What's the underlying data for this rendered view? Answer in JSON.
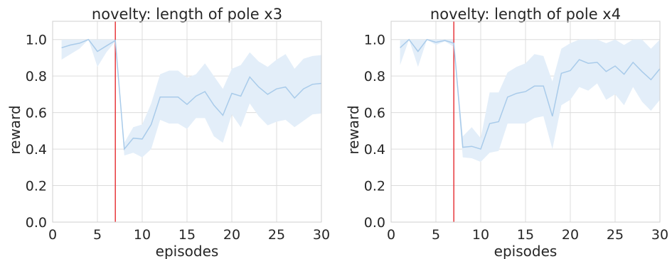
{
  "chart_data": [
    {
      "type": "line",
      "title": "novelty: length of pole x3",
      "xlabel": "episodes",
      "ylabel": "reward",
      "xlim": [
        0,
        30
      ],
      "ylim": [
        0,
        1.1
      ],
      "xticks": [
        "0",
        "5",
        "10",
        "15",
        "20",
        "25",
        "30"
      ],
      "yticks": [
        "0.0",
        "0.2",
        "0.4",
        "0.6",
        "0.8",
        "1.0"
      ],
      "grid": true,
      "legend": "none",
      "novelty_episode": 7,
      "series": [
        {
          "x": [
            1,
            2,
            3,
            4,
            5,
            6,
            7,
            8,
            9,
            10,
            11,
            12,
            13,
            14,
            15,
            16,
            17,
            18,
            19,
            20,
            21,
            22,
            23,
            24,
            25,
            26,
            27,
            28,
            29,
            30
          ],
          "mean": [
            0.955,
            0.97,
            0.98,
            1.0,
            0.935,
            0.965,
            0.995,
            0.4,
            0.46,
            0.455,
            0.535,
            0.685,
            0.685,
            0.685,
            0.645,
            0.69,
            0.715,
            0.64,
            0.585,
            0.705,
            0.69,
            0.795,
            0.74,
            0.7,
            0.73,
            0.74,
            0.68,
            0.73,
            0.755,
            0.76
          ],
          "lower": [
            0.89,
            0.92,
            0.95,
            1.0,
            0.85,
            0.93,
            0.99,
            0.365,
            0.38,
            0.355,
            0.4,
            0.56,
            0.54,
            0.54,
            0.51,
            0.57,
            0.57,
            0.47,
            0.435,
            0.59,
            0.52,
            0.65,
            0.58,
            0.53,
            0.55,
            0.56,
            0.52,
            0.555,
            0.59,
            0.595
          ],
          "upper": [
            1.0,
            1.0,
            1.0,
            1.0,
            1.0,
            1.0,
            1.0,
            0.435,
            0.52,
            0.535,
            0.65,
            0.81,
            0.83,
            0.83,
            0.79,
            0.81,
            0.87,
            0.8,
            0.73,
            0.84,
            0.86,
            0.93,
            0.88,
            0.85,
            0.89,
            0.92,
            0.84,
            0.895,
            0.91,
            0.915
          ]
        }
      ]
    },
    {
      "type": "line",
      "title": "novelty: length of pole x4",
      "xlabel": "episodes",
      "ylabel": "reward",
      "xlim": [
        0,
        30
      ],
      "ylim": [
        0,
        1.1
      ],
      "xticks": [
        "0",
        "5",
        "10",
        "15",
        "20",
        "25",
        "30"
      ],
      "yticks": [
        "0.0",
        "0.2",
        "0.4",
        "0.6",
        "0.8",
        "1.0"
      ],
      "grid": true,
      "legend": "none",
      "novelty_episode": 7,
      "series": [
        {
          "x": [
            1,
            2,
            3,
            4,
            5,
            6,
            7,
            8,
            9,
            10,
            11,
            12,
            13,
            14,
            15,
            16,
            17,
            18,
            19,
            20,
            21,
            22,
            23,
            24,
            25,
            26,
            27,
            28,
            29,
            30
          ],
          "mean": [
            0.955,
            1.0,
            0.935,
            1.0,
            0.985,
            0.995,
            0.98,
            0.41,
            0.415,
            0.4,
            0.54,
            0.55,
            0.685,
            0.705,
            0.715,
            0.745,
            0.745,
            0.58,
            0.815,
            0.83,
            0.89,
            0.87,
            0.875,
            0.825,
            0.855,
            0.81,
            0.875,
            0.825,
            0.78,
            0.84
          ],
          "lower": [
            0.86,
            1.0,
            0.85,
            1.0,
            0.97,
            0.99,
            0.96,
            0.355,
            0.35,
            0.33,
            0.38,
            0.39,
            0.54,
            0.54,
            0.54,
            0.57,
            0.58,
            0.4,
            0.64,
            0.67,
            0.74,
            0.72,
            0.76,
            0.67,
            0.7,
            0.64,
            0.74,
            0.66,
            0.61,
            0.67
          ],
          "upper": [
            1.0,
            1.0,
            1.0,
            1.0,
            1.0,
            1.0,
            1.0,
            0.47,
            0.52,
            0.46,
            0.71,
            0.71,
            0.82,
            0.85,
            0.87,
            0.92,
            0.91,
            0.77,
            0.95,
            0.98,
            1.0,
            1.0,
            1.0,
            0.98,
            1.0,
            0.97,
            1.0,
            1.0,
            0.95,
            1.0
          ]
        }
      ]
    }
  ],
  "colors": {
    "line": "#a9cbea",
    "band": "#e3eef9",
    "marker_line": "#e8383c"
  }
}
